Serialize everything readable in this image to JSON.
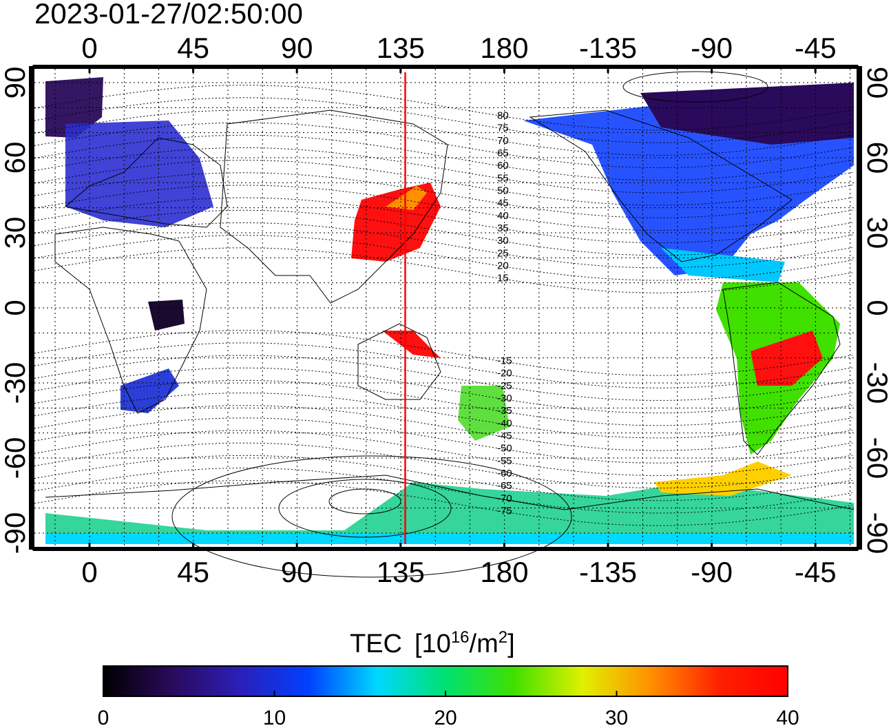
{
  "timestamp": "2023-01-27/02:50:00",
  "lon_ticks": [
    "0",
    "45",
    "90",
    "135",
    "180",
    "-135",
    "-90",
    "-45"
  ],
  "lat_ticks_left": [
    "90",
    "60",
    "30",
    "0",
    "-30",
    "-60",
    "-90"
  ],
  "lat_ticks_right": [
    "90",
    "60",
    "30",
    "0",
    "-30",
    "-60",
    "-90"
  ],
  "contour_labels_north": [
    "80",
    "75",
    "70",
    "65",
    "60",
    "55",
    "50",
    "45",
    "40",
    "35",
    "30",
    "25",
    "20",
    "15"
  ],
  "contour_labels_south": [
    "-15",
    "-20",
    "-25",
    "-30",
    "-35",
    "-40",
    "-45",
    "-50",
    "-55",
    "-60",
    "-65",
    "-70",
    "-75"
  ],
  "terminator_longitude": 137,
  "colorbar": {
    "title": "TEC",
    "unit_prefix": "[10",
    "unit_exp1": "16",
    "unit_mid": "/m",
    "unit_exp2": "2",
    "unit_suffix": "]",
    "ticks": [
      "0",
      "10",
      "20",
      "30",
      "40"
    ],
    "colors": [
      "#000000",
      "#2a0a5a",
      "#2b1fb8",
      "#0040ff",
      "#00d8ff",
      "#00e070",
      "#40e000",
      "#e0f000",
      "#ff9000",
      "#ff2000",
      "#ff0000"
    ]
  },
  "tec_regions": [
    {
      "name": "arctic-europe",
      "tec": 5
    },
    {
      "name": "europe",
      "tec": 9
    },
    {
      "name": "japan",
      "tec": 38
    },
    {
      "name": "north-america",
      "tec": 11
    },
    {
      "name": "south-america",
      "tec": 28
    },
    {
      "name": "antarctic",
      "tec": 20
    }
  ]
}
